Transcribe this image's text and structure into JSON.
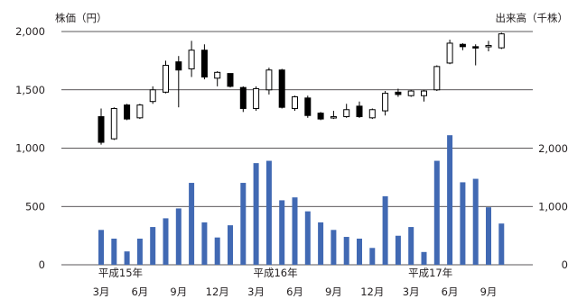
{
  "chart_data": {
    "type": "candlestick+bar",
    "title": "",
    "price_axis": {
      "label": "株価（円）",
      "ticks": [
        "2,000",
        "1,500",
        "1,000",
        "500",
        "0"
      ],
      "tick_values": [
        2000,
        1500,
        1000,
        500,
        0
      ],
      "range": [
        0,
        2000
      ]
    },
    "volume_axis": {
      "label": "出来高（千株）",
      "ticks": [
        "2,000",
        "1,000",
        "0"
      ],
      "tick_values": [
        2000,
        1000,
        0
      ],
      "range": [
        0,
        2000
      ]
    },
    "x_axis": {
      "month_labels": [
        {
          "index": 0,
          "text": "3月"
        },
        {
          "index": 3,
          "text": "6月"
        },
        {
          "index": 6,
          "text": "9月"
        },
        {
          "index": 9,
          "text": "12月"
        },
        {
          "index": 12,
          "text": "3月"
        },
        {
          "index": 15,
          "text": "6月"
        },
        {
          "index": 18,
          "text": "9月"
        },
        {
          "index": 21,
          "text": "12月"
        },
        {
          "index": 24,
          "text": "3月"
        },
        {
          "index": 27,
          "text": "6月"
        },
        {
          "index": 30,
          "text": "9月"
        }
      ],
      "era_labels": [
        {
          "index": 1.5,
          "text": "平成15年"
        },
        {
          "index": 13.5,
          "text": "平成16年"
        },
        {
          "index": 25.5,
          "text": "平成17年"
        }
      ]
    },
    "candles": [
      {
        "o": 1270,
        "h": 1340,
        "l": 1030,
        "c": 1050
      },
      {
        "o": 1080,
        "h": 1350,
        "l": 1070,
        "c": 1340
      },
      {
        "o": 1370,
        "h": 1380,
        "l": 1240,
        "c": 1250
      },
      {
        "o": 1260,
        "h": 1380,
        "l": 1250,
        "c": 1370
      },
      {
        "o": 1400,
        "h": 1530,
        "l": 1380,
        "c": 1500
      },
      {
        "o": 1480,
        "h": 1750,
        "l": 1470,
        "c": 1710
      },
      {
        "o": 1740,
        "h": 1790,
        "l": 1350,
        "c": 1670
      },
      {
        "o": 1680,
        "h": 1920,
        "l": 1610,
        "c": 1840
      },
      {
        "o": 1840,
        "h": 1890,
        "l": 1590,
        "c": 1610
      },
      {
        "o": 1600,
        "h": 1660,
        "l": 1530,
        "c": 1650
      },
      {
        "o": 1640,
        "h": 1640,
        "l": 1520,
        "c": 1530
      },
      {
        "o": 1520,
        "h": 1530,
        "l": 1310,
        "c": 1340
      },
      {
        "o": 1340,
        "h": 1530,
        "l": 1320,
        "c": 1510
      },
      {
        "o": 1500,
        "h": 1690,
        "l": 1460,
        "c": 1670
      },
      {
        "o": 1670,
        "h": 1680,
        "l": 1340,
        "c": 1350
      },
      {
        "o": 1340,
        "h": 1450,
        "l": 1320,
        "c": 1440
      },
      {
        "o": 1430,
        "h": 1450,
        "l": 1260,
        "c": 1280
      },
      {
        "o": 1300,
        "h": 1310,
        "l": 1240,
        "c": 1250
      },
      {
        "o": 1260,
        "h": 1320,
        "l": 1250,
        "c": 1270
      },
      {
        "o": 1270,
        "h": 1380,
        "l": 1260,
        "c": 1330
      },
      {
        "o": 1360,
        "h": 1400,
        "l": 1260,
        "c": 1270
      },
      {
        "o": 1260,
        "h": 1340,
        "l": 1250,
        "c": 1330
      },
      {
        "o": 1320,
        "h": 1490,
        "l": 1280,
        "c": 1470
      },
      {
        "o": 1480,
        "h": 1510,
        "l": 1440,
        "c": 1460
      },
      {
        "o": 1450,
        "h": 1500,
        "l": 1440,
        "c": 1490
      },
      {
        "o": 1450,
        "h": 1500,
        "l": 1400,
        "c": 1490
      },
      {
        "o": 1500,
        "h": 1710,
        "l": 1490,
        "c": 1700
      },
      {
        "o": 1730,
        "h": 1930,
        "l": 1720,
        "c": 1900
      },
      {
        "o": 1890,
        "h": 1900,
        "l": 1840,
        "c": 1870
      },
      {
        "o": 1870,
        "h": 1890,
        "l": 1710,
        "c": 1860
      },
      {
        "o": 1870,
        "h": 1920,
        "l": 1830,
        "c": 1880
      },
      {
        "o": 1860,
        "h": 1990,
        "l": 1850,
        "c": 1980
      }
    ],
    "volume": [
      600,
      450,
      230,
      450,
      650,
      800,
      970,
      1410,
      730,
      470,
      680,
      1410,
      1750,
      1790,
      1110,
      1160,
      920,
      730,
      600,
      480,
      450,
      290,
      1180,
      500,
      650,
      220,
      1790,
      2230,
      1420,
      1480,
      990,
      710
    ],
    "colors": {
      "volume_bar": "#4169b3",
      "up_candle": "#ffffff",
      "down_candle": "#000000",
      "axis": "#231f20"
    }
  }
}
